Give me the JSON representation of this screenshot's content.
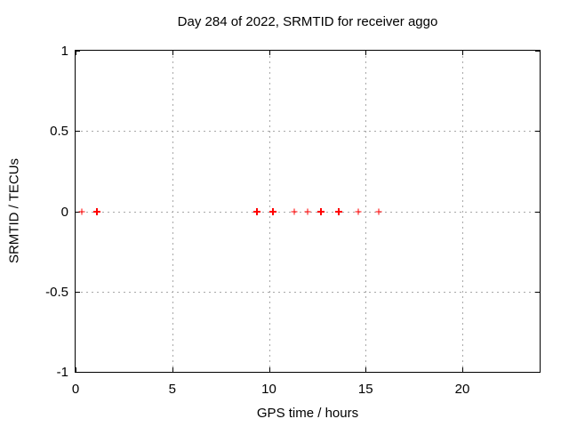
{
  "title": "Day 284 of 2022, SRMTID for receiver aggo",
  "chart_data": {
    "type": "scatter",
    "title": "Day 284 of 2022, SRMTID for receiver aggo",
    "xlabel": "GPS time / hours",
    "ylabel": "SRMTID / TECUs",
    "xlim": [
      0,
      24
    ],
    "ylim": [
      -1,
      1
    ],
    "xticks": [
      0,
      5,
      10,
      15,
      20
    ],
    "xtick_labels": [
      "0",
      "5",
      "10",
      "15",
      "20"
    ],
    "yticks": [
      -1,
      -0.5,
      0,
      0.5,
      1
    ],
    "ytick_labels": [
      "-1",
      "-0.5",
      "0",
      "0.5",
      "1"
    ],
    "grid": true,
    "legend": "none",
    "marker": "plus",
    "series": [
      {
        "name": "SRMTID",
        "color": "#ff0000",
        "points": [
          {
            "x": 0.3,
            "y": 0,
            "overlap_bold": false
          },
          {
            "x": 1.1,
            "y": 0,
            "overlap_bold": true
          },
          {
            "x": 9.4,
            "y": 0,
            "overlap_bold": true
          },
          {
            "x": 10.2,
            "y": 0,
            "overlap_bold": true
          },
          {
            "x": 11.3,
            "y": 0,
            "overlap_bold": false
          },
          {
            "x": 12.0,
            "y": 0,
            "overlap_bold": false
          },
          {
            "x": 12.7,
            "y": 0,
            "overlap_bold": true
          },
          {
            "x": 13.6,
            "y": 0,
            "overlap_bold": true
          },
          {
            "x": 14.6,
            "y": 0,
            "overlap_bold": false
          },
          {
            "x": 15.7,
            "y": 0,
            "overlap_bold": false
          }
        ]
      }
    ],
    "colors": {
      "background": "#ffffff",
      "frame": "#000000",
      "grid": "#a8a8a8",
      "text": "#000000",
      "marker": "#ff0000"
    }
  }
}
